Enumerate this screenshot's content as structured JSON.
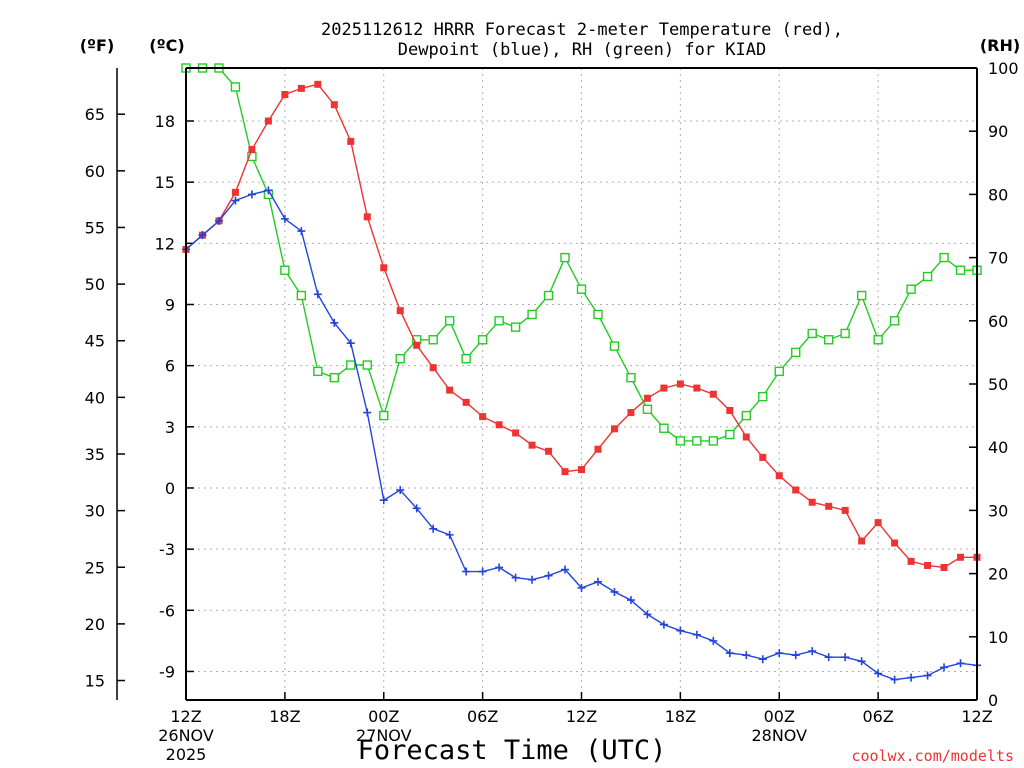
{
  "chart_data": {
    "type": "line",
    "title_line1": "2025112612 HRRR Forecast 2-meter Temperature (red),",
    "title_line2": "Dewpoint (blue), RH (green) for KIAD",
    "xlabel": "Forecast Time (UTC)",
    "credit": "coolwx.com/modelts",
    "left_outer_axis_label": "(ºF)",
    "left_axis_label": "(ºC)",
    "right_axis_label": "(RH)",
    "x_hours_range": [
      0,
      48
    ],
    "x_ticks": [
      {
        "hour": 0,
        "label": "12Z",
        "sub1": "26NOV",
        "sub2": "2025"
      },
      {
        "hour": 6,
        "label": "18Z",
        "sub1": "",
        "sub2": ""
      },
      {
        "hour": 12,
        "label": "00Z",
        "sub1": "27NOV",
        "sub2": ""
      },
      {
        "hour": 18,
        "label": "06Z",
        "sub1": "",
        "sub2": ""
      },
      {
        "hour": 24,
        "label": "12Z",
        "sub1": "",
        "sub2": ""
      },
      {
        "hour": 30,
        "label": "18Z",
        "sub1": "",
        "sub2": ""
      },
      {
        "hour": 36,
        "label": "00Z",
        "sub1": "28NOV",
        "sub2": ""
      },
      {
        "hour": 42,
        "label": "06Z",
        "sub1": "",
        "sub2": ""
      },
      {
        "hour": 48,
        "label": "12Z",
        "sub1": "",
        "sub2": ""
      }
    ],
    "celsius_range": [
      -10.4,
      20.6
    ],
    "celsius_ticks": [
      18,
      15,
      12,
      9,
      6,
      3,
      0,
      -3,
      -6,
      -9
    ],
    "fahrenheit_ticks": [
      65,
      60,
      55,
      50,
      45,
      40,
      35,
      30,
      25,
      20,
      15
    ],
    "rh_range": [
      0,
      100
    ],
    "rh_ticks": [
      100,
      90,
      80,
      70,
      60,
      50,
      40,
      30,
      20,
      10,
      0
    ],
    "series": [
      {
        "name": "Temperature",
        "axis": "celsius",
        "color": "#ee3333",
        "marker": "filled-square",
        "values": [
          11.7,
          12.4,
          13.1,
          14.5,
          16.6,
          18.0,
          19.3,
          19.6,
          19.8,
          18.8,
          17.0,
          13.3,
          10.8,
          8.7,
          7.0,
          5.9,
          4.8,
          4.2,
          3.5,
          3.1,
          2.7,
          2.1,
          1.8,
          0.8,
          0.9,
          1.9,
          2.9,
          3.7,
          4.4,
          4.9,
          5.1,
          4.9,
          4.6,
          3.8,
          2.5,
          1.5,
          0.6,
          -0.1,
          -0.7,
          -0.9,
          -1.1,
          -2.6,
          -1.7,
          -2.7,
          -3.6,
          -3.8,
          -3.9,
          -3.4,
          -3.4
        ]
      },
      {
        "name": "Dewpoint",
        "axis": "celsius",
        "color": "#2244dd",
        "marker": "plus",
        "values": [
          11.7,
          12.4,
          13.1,
          14.1,
          14.4,
          14.6,
          13.2,
          12.6,
          9.5,
          8.1,
          7.1,
          3.7,
          -0.6,
          -0.1,
          -1.0,
          -2.0,
          -2.3,
          -4.1,
          -4.1,
          -3.9,
          -4.4,
          -4.5,
          -4.3,
          -4.0,
          -4.9,
          -4.6,
          -5.1,
          -5.5,
          -6.2,
          -6.7,
          -7.0,
          -7.2,
          -7.5,
          -8.1,
          -8.2,
          -8.4,
          -8.1,
          -8.2,
          -8.0,
          -8.3,
          -8.3,
          -8.5,
          -9.1,
          -9.4,
          -9.3,
          -9.2,
          -8.8,
          -8.6,
          -8.7
        ]
      },
      {
        "name": "RH",
        "axis": "rh",
        "color": "#22cc22",
        "marker": "open-square",
        "values": [
          100,
          100,
          100,
          97,
          86,
          80,
          68,
          64,
          52,
          51,
          53,
          53,
          45,
          54,
          57,
          57,
          60,
          54,
          57,
          60,
          59,
          61,
          64,
          70,
          65,
          61,
          56,
          51,
          46,
          43,
          41,
          41,
          41,
          42,
          45,
          48,
          52,
          55,
          58,
          57,
          58,
          64,
          57,
          60,
          65,
          67,
          70,
          68,
          68
        ]
      }
    ]
  }
}
